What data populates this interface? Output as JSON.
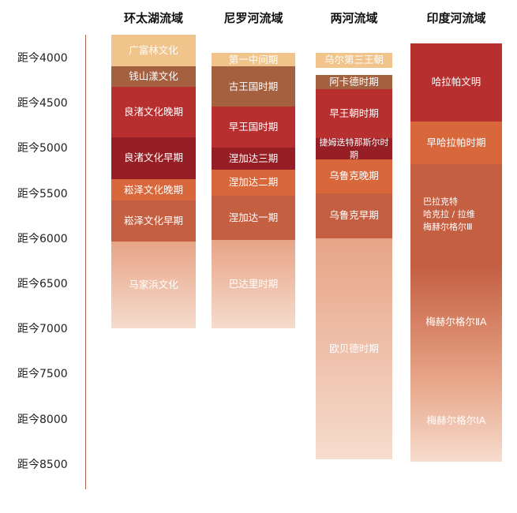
{
  "colors": {
    "pale": "#f1c48c",
    "brown": "#a4603f",
    "red": "#b72f2f",
    "darkred": "#951f24",
    "orange": "#d8683c",
    "rust": "#c45f42",
    "fadeTop": "#e7a487",
    "fadeBottom": "#f6dccd"
  },
  "chart_data": {
    "type": "timeline",
    "axis": {
      "ticks": [
        "距今4000",
        "距今4500",
        "距今5000",
        "距今5500",
        "距今6000",
        "距今6500",
        "距今7000",
        "距今7500",
        "距今8000",
        "距今8500"
      ],
      "tick_values": [
        4000,
        4500,
        5000,
        5500,
        6000,
        6500,
        7000,
        7500,
        8000,
        8500
      ],
      "unit": "years before present"
    },
    "columns": [
      {
        "title": "环太湖流域",
        "segments": [
          {
            "label": "广富林文化",
            "start": 3750,
            "end": 4100,
            "color": "pale"
          },
          {
            "label": "钱山漾文化",
            "start": 4100,
            "end": 4320,
            "color": "brown"
          },
          {
            "label": "良渚文化晚期",
            "start": 4320,
            "end": 4880,
            "color": "red"
          },
          {
            "label": "良渚文化早期",
            "start": 4880,
            "end": 5350,
            "color": "darkred"
          },
          {
            "label": "崧泽文化晚期",
            "start": 5350,
            "end": 5580,
            "color": "orange"
          },
          {
            "label": "崧泽文化早期",
            "start": 5580,
            "end": 6040,
            "color": "rust"
          },
          {
            "label": "马家浜文化",
            "start": 6040,
            "end": 7000,
            "color": "fade"
          }
        ]
      },
      {
        "title": "尼罗河流域",
        "segments": [
          {
            "label": "第一中间期",
            "start": 3950,
            "end": 4100,
            "color": "pale"
          },
          {
            "label": "古王国时期",
            "start": 4100,
            "end": 4540,
            "color": "brown"
          },
          {
            "label": "早王国时期",
            "start": 4540,
            "end": 5000,
            "color": "red"
          },
          {
            "label": "涅加达三期",
            "start": 5000,
            "end": 5240,
            "color": "darkred"
          },
          {
            "label": "涅加达二期",
            "start": 5240,
            "end": 5530,
            "color": "orange"
          },
          {
            "label": "涅加达一期",
            "start": 5530,
            "end": 6020,
            "color": "rust"
          },
          {
            "label": "巴达里时期",
            "start": 6020,
            "end": 7000,
            "color": "fade"
          }
        ]
      },
      {
        "title": "两河流域",
        "segments": [
          {
            "label": "乌尔第三王朝",
            "start": 3950,
            "end": 4110,
            "color": "pale"
          },
          {
            "label": "阿卡德时期",
            "start": 4190,
            "end": 4350,
            "color": "brown"
          },
          {
            "label": "早王朝时期",
            "start": 4350,
            "end": 4890,
            "color": "red"
          },
          {
            "label": "捷姆迭特那斯尔时期",
            "start": 4890,
            "end": 5130,
            "color": "darkred"
          },
          {
            "label": "乌鲁克晚期",
            "start": 5130,
            "end": 5500,
            "color": "orange"
          },
          {
            "label": "乌鲁克早期",
            "start": 5500,
            "end": 6000,
            "color": "rust"
          },
          {
            "label": "欧贝德时期",
            "start": 6000,
            "end": 8450,
            "color": "fade"
          }
        ]
      },
      {
        "title": "印度河流域",
        "segments": [
          {
            "label": "哈拉帕文明",
            "start": 3840,
            "end": 4710,
            "color": "red"
          },
          {
            "label": "早哈拉帕时期",
            "start": 4710,
            "end": 5180,
            "color": "orange"
          },
          {
            "label": "巴拉克特\n哈克拉 / 拉维\n梅赫尔格尔Ⅲ",
            "start": 5180,
            "end": 6300,
            "color": "rust"
          },
          {
            "label": "梅赫尔格尔ⅡA",
            "start": 6300,
            "end": 7560,
            "color": "fadeMid"
          },
          {
            "label": "梅赫尔格尔ⅠA",
            "start": 7560,
            "end": 8480,
            "color": "fade"
          }
        ]
      }
    ]
  }
}
